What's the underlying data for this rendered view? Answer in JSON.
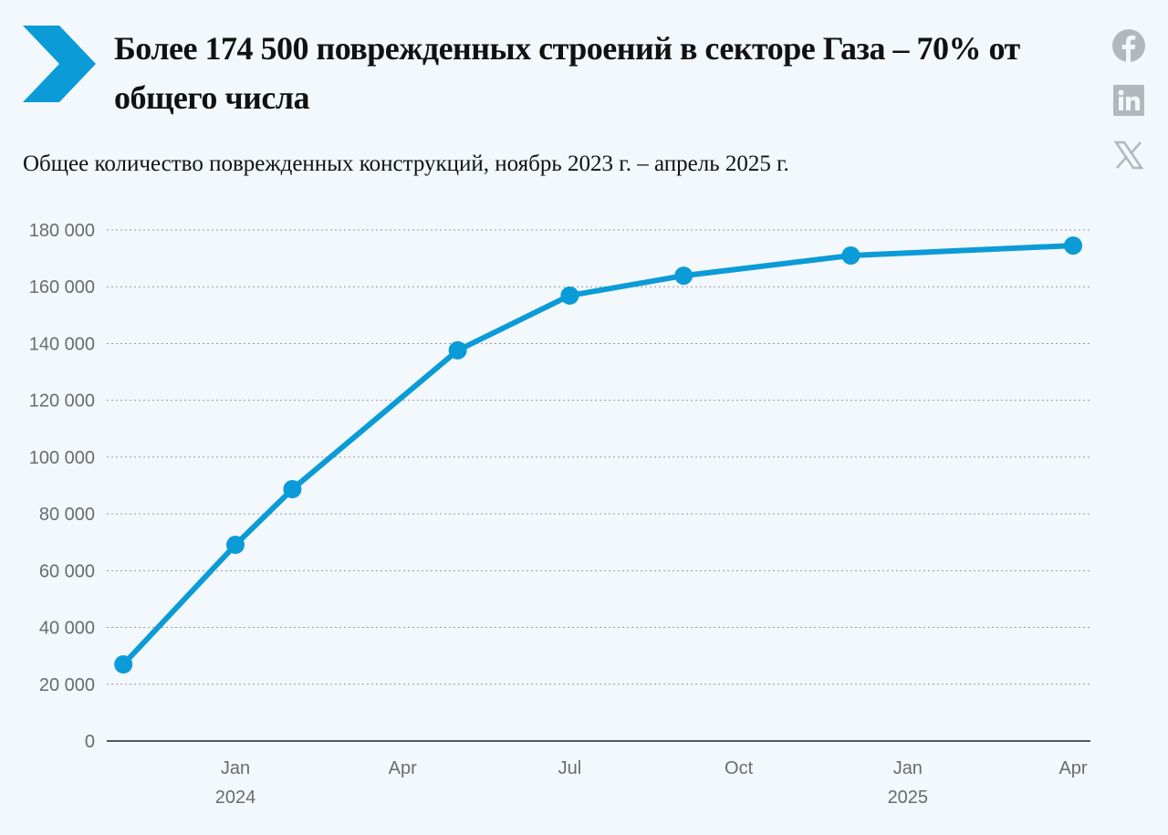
{
  "header": {
    "title": "Более 174 500 поврежденных строений в секторе Газа – 70% от общего числа",
    "subtitle": "Общее количество поврежденных конструкций, ноябрь 2023 г. – апрель 2025 г."
  },
  "social": [
    {
      "icon": "facebook-icon"
    },
    {
      "icon": "linkedin-icon"
    },
    {
      "icon": "x-icon"
    }
  ],
  "colors": {
    "accent": "#0b9bd7",
    "background": "#f3f8fc",
    "icon": "#b5b8bb"
  },
  "chart_data": {
    "type": "line",
    "title": "Более 174 500 поврежденных строений в секторе Газа – 70% от общего числа",
    "subtitle": "Общее количество поврежденных конструкций, ноябрь 2023 г. – апрель 2025 г.",
    "xlabel": "",
    "ylabel": "",
    "ylim": [
      0,
      180000
    ],
    "grid": true,
    "x": [
      "2023-11-01",
      "2024-01-01",
      "2024-02-01",
      "2024-05-01",
      "2024-07-01",
      "2024-09-01",
      "2024-12-01",
      "2025-04-01"
    ],
    "values": [
      27000,
      69100,
      88700,
      137600,
      156900,
      163900,
      171000,
      174500
    ],
    "y_ticks": [
      "0",
      "20 000",
      "40 000",
      "60 000",
      "80 000",
      "100 000",
      "120 000",
      "140 000",
      "160 000",
      "180 000"
    ],
    "x_ticks": [
      {
        "date": "2024-01-01",
        "label": "Jan",
        "year": "2024"
      },
      {
        "date": "2024-04-01",
        "label": "Apr",
        "year": ""
      },
      {
        "date": "2024-07-01",
        "label": "Jul",
        "year": ""
      },
      {
        "date": "2024-10-01",
        "label": "Oct",
        "year": ""
      },
      {
        "date": "2025-01-01",
        "label": "Jan",
        "year": "2025"
      },
      {
        "date": "2025-04-01",
        "label": "Apr",
        "year": ""
      }
    ]
  }
}
